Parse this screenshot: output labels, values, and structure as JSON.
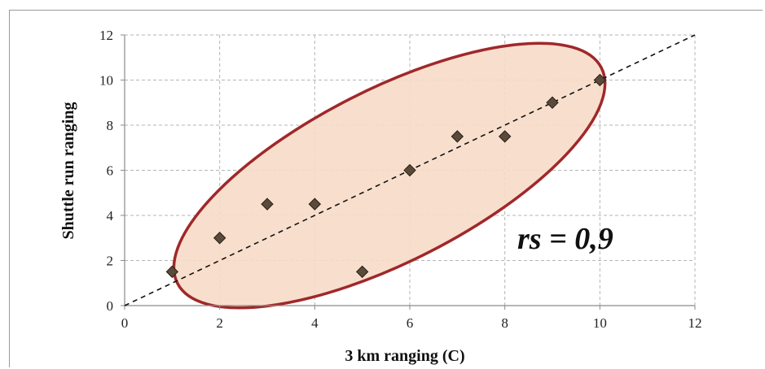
{
  "chart_data": {
    "type": "scatter",
    "xlabel": "3 km ranging (C)",
    "ylabel": "Shuttle run ranging",
    "xlim": [
      0,
      12
    ],
    "ylim": [
      0,
      12
    ],
    "xticks": [
      "0",
      "2",
      "4",
      "6",
      "8",
      "10",
      "12"
    ],
    "yticks": [
      "0",
      "2",
      "4",
      "6",
      "8",
      "10",
      "12"
    ],
    "grid": true,
    "series": [
      {
        "x": [
          1,
          2,
          3,
          4,
          5,
          6,
          7,
          8,
          9,
          10
        ],
        "y": [
          1.5,
          3,
          4.5,
          4.5,
          1.5,
          6,
          7.5,
          7.5,
          9,
          10
        ]
      }
    ],
    "reference_line": {
      "style": "dashed",
      "from": [
        0,
        0
      ],
      "to": [
        12,
        12
      ]
    },
    "ellipse": {
      "fill": "#f7dcc8",
      "stroke": "#a0282a"
    },
    "annotation": "rs = 0,9",
    "colors": {
      "marker": "#5a4a3a",
      "gridline": "#b5b5b5"
    }
  }
}
